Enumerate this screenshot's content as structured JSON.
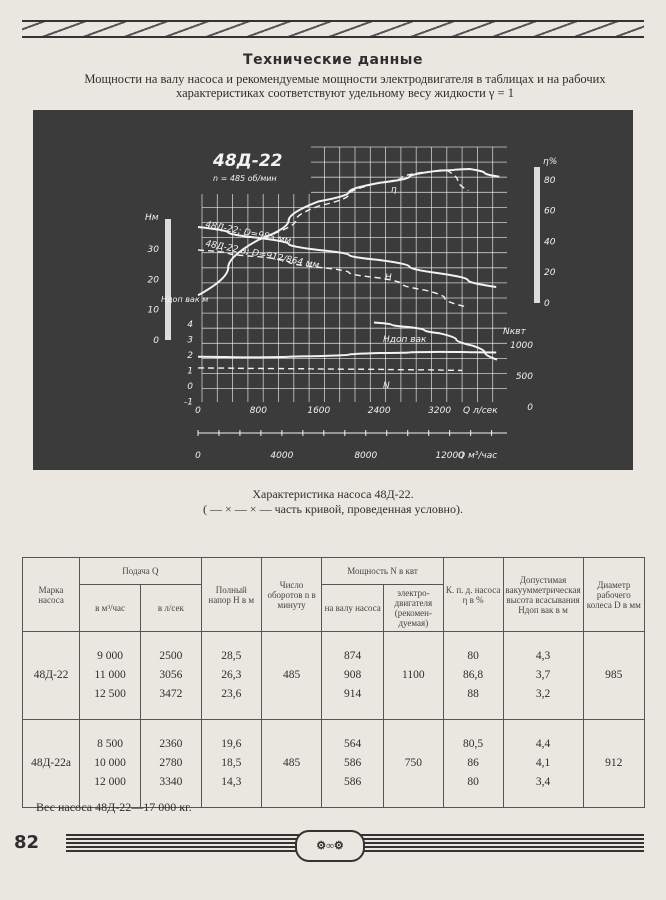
{
  "header": {
    "title": "Технические данные",
    "subtitle": "Мощности на валу насоса и рекомендуемые мощности электродвигателя в таблицах и на рабочих характеристиках соответствуют удельному весу жидкости γ = 1"
  },
  "chart_data": {
    "type": "line",
    "title": "48Д-22",
    "subtitle": "n = 485 об/мин",
    "grid": true,
    "xlabel": "Q л/сек",
    "xlabel2": "Q м³/час",
    "x_ticks": [
      "0",
      "800",
      "1600",
      "2400",
      "3200"
    ],
    "x2_ticks": [
      "0",
      "4000",
      "8000",
      "12000"
    ],
    "xlim": [
      0,
      4000
    ],
    "axes": {
      "H": {
        "label": "Нм",
        "ticks": [
          "0",
          "10",
          "20",
          "30"
        ],
        "range": [
          0,
          40
        ]
      },
      "eta": {
        "label": "η%",
        "ticks": [
          "0",
          "20",
          "40",
          "60",
          "80"
        ],
        "range": [
          0,
          90
        ]
      },
      "N": {
        "label": "Nквт",
        "ticks": [
          "0",
          "500",
          "1000"
        ],
        "range": [
          0,
          1200
        ]
      },
      "Hvac": {
        "label": "Hдоп вак м",
        "ticks": [
          "4",
          "3",
          "2",
          "1",
          "0",
          "-1"
        ],
        "range": [
          -1,
          4
        ]
      }
    },
    "curve_labels": {
      "h_985": "48Д-22; D=985 мм",
      "h_912": "48Д-22 а; D=912/864 мм",
      "eta": "η",
      "h": "H",
      "hvac": "Hдоп вак",
      "n": "N"
    },
    "series": [
      {
        "id": "H-985",
        "axis": "H",
        "style": "solid",
        "x": [
          0,
          800,
          1600,
          2400,
          3200,
          3950
        ],
        "y": [
          37.3,
          33.7,
          29.7,
          26.4,
          22,
          17.5
        ]
      },
      {
        "id": "H-912",
        "axis": "H",
        "style": "dashed",
        "x": [
          0,
          800,
          1600,
          2400,
          3000,
          3540
        ],
        "y": [
          29.7,
          27.5,
          24,
          20.5,
          16.5,
          11
        ]
      },
      {
        "id": "eta-985",
        "axis": "eta",
        "style": "solid",
        "x": [
          0,
          800,
          1600,
          2400,
          3200,
          3600,
          3990
        ],
        "y": [
          5,
          41,
          66,
          78,
          86,
          87,
          82
        ]
      },
      {
        "id": "eta-912",
        "axis": "eta",
        "style": "dashed",
        "x": [
          1000,
          1600,
          2400,
          3000,
          3300,
          3580
        ],
        "y": [
          45,
          63,
          78,
          85,
          86,
          73
        ]
      },
      {
        "id": "N-985",
        "axis": "N",
        "style": "solid",
        "x": [
          0,
          800,
          1600,
          2400,
          3200,
          3950
        ],
        "y": [
          810,
          800,
          820,
          870,
          890,
          880
        ]
      },
      {
        "id": "N-912",
        "axis": "N",
        "style": "dashed",
        "x": [
          0,
          1000,
          2000,
          3000,
          3500
        ],
        "y": [
          630,
          620,
          610,
          600,
          590
        ]
      },
      {
        "id": "Hvac",
        "axis": "Hvac",
        "style": "solid",
        "x": [
          2330,
          2800,
          3200,
          3640,
          3960
        ],
        "y": [
          4.1,
          3.8,
          3.4,
          2.6,
          1.7
        ]
      }
    ]
  },
  "caption": {
    "line1": "Характеристика насоса 48Д-22.",
    "line2": "( — × — × — часть кривой, проведенная условно)."
  },
  "table": {
    "headers": {
      "brand": "Марка насоса",
      "flow": "Подача Q",
      "flow_m3": "в м³/час",
      "flow_ls": "в л/сек",
      "head": "Полный напор H в м",
      "rpm": "Число оборотов n в минуту",
      "power": "Мощность N в квт",
      "power_shaft": "на валу насоса",
      "power_motor": "электро-двигателя (рекомен-дуемая)",
      "eff": "К. п. д. насоса η в %",
      "vac": "Допустимая вакуумметрическая высота всасывания Hдоп вак в м",
      "diam": "Диаметр рабочего колеса D в мм"
    },
    "rows": [
      {
        "brand": "48Д-22",
        "flow_m3": [
          "9 000",
          "11 000",
          "12 500"
        ],
        "flow_ls": [
          "2500",
          "3056",
          "3472"
        ],
        "head": [
          "28,5",
          "26,3",
          "23,6"
        ],
        "rpm": "485",
        "power_shaft": [
          "874",
          "908",
          "914"
        ],
        "power_motor": "1100",
        "eff": [
          "80",
          "86,8",
          "88"
        ],
        "vac": [
          "4,3",
          "3,7",
          "3,2"
        ],
        "diam": "985"
      },
      {
        "brand": "48Д-22а",
        "flow_m3": [
          "8 500",
          "10 000",
          "12 000"
        ],
        "flow_ls": [
          "2360",
          "2780",
          "3340"
        ],
        "head": [
          "19,6",
          "18,5",
          "14,3"
        ],
        "rpm": "485",
        "power_shaft": [
          "564",
          "586",
          "586"
        ],
        "power_motor": "750",
        "eff": [
          "80,5",
          "86",
          "80"
        ],
        "vac": [
          "4,4",
          "4,1",
          "3,4"
        ],
        "diam": "912"
      }
    ]
  },
  "footer": {
    "note": "Вес насоса 48Д-22—17 000 кг.",
    "page_number": "82"
  },
  "colors": {
    "paper": "#e9e7e0",
    "panel": "#3b3b3b",
    "chart_ink": "#f2f2f2"
  }
}
